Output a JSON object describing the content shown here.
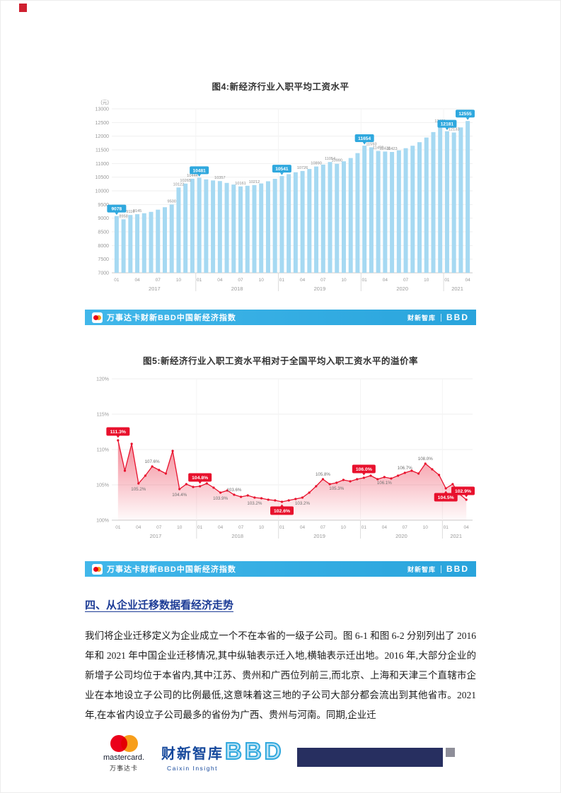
{
  "chart_data": [
    {
      "type": "bar",
      "title": "图4:新经济行业入职平均工资水平",
      "unit": "(元)",
      "ylim": [
        7000,
        13000
      ],
      "ytick_step": 500,
      "yticks": [
        "7000",
        "7500",
        "8000",
        "8500",
        "9000",
        "9500",
        "10000",
        "10500",
        "11000",
        "11500",
        "12000",
        "12500",
        "13000"
      ],
      "bar_color": "#a6d9f2",
      "callout_color": "#2fa8de",
      "years": [
        {
          "label": "2017",
          "months": 12,
          "ticks": [
            "01",
            "04",
            "07",
            "10"
          ]
        },
        {
          "label": "2018",
          "months": 12,
          "ticks": [
            "01",
            "04",
            "07",
            "10"
          ]
        },
        {
          "label": "2019",
          "months": 12,
          "ticks": [
            "01",
            "04",
            "07",
            "10"
          ]
        },
        {
          "label": "2020",
          "months": 12,
          "ticks": [
            "01",
            "04",
            "07",
            "10"
          ]
        },
        {
          "label": "2021",
          "months": 4,
          "ticks": [
            "01",
            "04"
          ]
        }
      ],
      "values": [
        9078,
        8958,
        9116,
        9145,
        9180,
        9230,
        9310,
        9400,
        9500,
        10122,
        10265,
        10444,
        10481,
        10420,
        10380,
        10357,
        10290,
        10230,
        10161,
        10185,
        10212,
        10270,
        10350,
        10440,
        10541,
        10610,
        10680,
        10726,
        10800,
        10890,
        10960,
        11054,
        10990,
        11080,
        11200,
        11380,
        11654,
        11593,
        11458,
        11438,
        11423,
        11480,
        11560,
        11650,
        11780,
        11950,
        12150,
        12431,
        12181,
        12133,
        12320,
        12555
      ],
      "point_labels": [
        {
          "i": 1,
          "text": "8958"
        },
        {
          "i": 2,
          "text": "9116"
        },
        {
          "i": 3,
          "text": "9145"
        },
        {
          "i": 8,
          "text": "9500"
        },
        {
          "i": 9,
          "text": "10122"
        },
        {
          "i": 10,
          "text": "10265"
        },
        {
          "i": 11,
          "text": "10444"
        },
        {
          "i": 15,
          "text": "10357"
        },
        {
          "i": 18,
          "text": "10161"
        },
        {
          "i": 20,
          "text": "10212"
        },
        {
          "i": 27,
          "text": "10726"
        },
        {
          "i": 29,
          "text": "10890"
        },
        {
          "i": 31,
          "text": "11054"
        },
        {
          "i": 32,
          "text": "10990"
        },
        {
          "i": 37,
          "text": "11593"
        },
        {
          "i": 38,
          "text": "11458"
        },
        {
          "i": 39,
          "text": "11438"
        },
        {
          "i": 40,
          "text": "11423"
        },
        {
          "i": 47,
          "text": "12431"
        },
        {
          "i": 49,
          "text": "12133"
        }
      ],
      "callouts": [
        {
          "i": 0,
          "text": "9078"
        },
        {
          "i": 12,
          "text": "10481"
        },
        {
          "i": 24,
          "text": "10541"
        },
        {
          "i": 36,
          "text": "11654"
        },
        {
          "i": 48,
          "text": "12181"
        },
        {
          "i": 51,
          "text": "12555"
        }
      ]
    },
    {
      "type": "area-line",
      "title": "图5:新经济行业入职工资水平相对于全国平均入职工资水平的溢价率",
      "ylim": [
        100,
        120
      ],
      "ytick_step": 5,
      "yticks": [
        "100%",
        "105%",
        "110%",
        "115%",
        "120%"
      ],
      "line_color": "#e8112d",
      "years": [
        {
          "label": "2017",
          "months": 12,
          "ticks": [
            "01",
            "04",
            "07",
            "10"
          ]
        },
        {
          "label": "2018",
          "months": 12,
          "ticks": [
            "01",
            "04",
            "07",
            "10"
          ]
        },
        {
          "label": "2019",
          "months": 12,
          "ticks": [
            "01",
            "04",
            "07",
            "10"
          ]
        },
        {
          "label": "2020",
          "months": 12,
          "ticks": [
            "01",
            "04",
            "07",
            "10"
          ]
        },
        {
          "label": "2021",
          "months": 4,
          "ticks": [
            "01",
            "04"
          ]
        }
      ],
      "values": [
        111.3,
        107.0,
        110.8,
        105.2,
        106.3,
        107.6,
        107.1,
        106.6,
        109.8,
        104.4,
        105.1,
        104.7,
        104.8,
        105.2,
        104.6,
        103.9,
        104.2,
        103.6,
        103.3,
        103.5,
        103.2,
        103.1,
        102.9,
        102.8,
        102.6,
        102.8,
        103.0,
        103.2,
        103.9,
        104.8,
        105.8,
        105.1,
        105.3,
        105.7,
        105.5,
        105.8,
        106.0,
        106.3,
        105.8,
        106.1,
        105.9,
        106.3,
        106.7,
        107.0,
        106.6,
        108.0,
        107.2,
        106.4,
        104.5,
        105.1,
        103.7,
        102.9
      ],
      "point_labels": [
        {
          "i": 3,
          "text": "105.2%",
          "pos": "below"
        },
        {
          "i": 5,
          "text": "107.6%",
          "pos": "above"
        },
        {
          "i": 9,
          "text": "104.4%",
          "pos": "below"
        },
        {
          "i": 15,
          "text": "103.9%",
          "pos": "below"
        },
        {
          "i": 17,
          "text": "103.6%",
          "pos": "above"
        },
        {
          "i": 20,
          "text": "103.2%",
          "pos": "below"
        },
        {
          "i": 27,
          "text": "103.2%",
          "pos": "below"
        },
        {
          "i": 30,
          "text": "105.8%",
          "pos": "above"
        },
        {
          "i": 32,
          "text": "105.3%",
          "pos": "below"
        },
        {
          "i": 39,
          "text": "106.1%",
          "pos": "below"
        },
        {
          "i": 42,
          "text": "106.7%",
          "pos": "above"
        },
        {
          "i": 45,
          "text": "108.0%",
          "pos": "above"
        }
      ],
      "callouts": [
        {
          "i": 0,
          "text": "111.3%",
          "dir": "up"
        },
        {
          "i": 12,
          "text": "104.8%",
          "dir": "up"
        },
        {
          "i": 24,
          "text": "102.6%",
          "dir": "down"
        },
        {
          "i": 36,
          "text": "106.0%",
          "dir": "up"
        },
        {
          "i": 48,
          "text": "104.5%",
          "dir": "down"
        },
        {
          "i": 51,
          "text": "102.9%",
          "dir": "up"
        }
      ]
    }
  ],
  "chart_footer": {
    "text": "万事达卡财新BBD中国新经济指数",
    "caixin": "财新智库",
    "bbd": "BBD"
  },
  "section": {
    "heading": "四、从企业迁移数据看经济走势",
    "paragraph": "我们将企业迁移定义为企业成立一个不在本省的一级子公司。图 6-1 和图 6-2 分别列出了 2016 年和 2021 年中国企业迁移情况,其中纵轴表示迁入地,横轴表示迁出地。2016 年,大部分企业的新增子公司均位于本省内,其中江苏、贵州和广西位列前三,而北京、上海和天津三个直辖市企业在本地设立子公司的比例最低,这意味着这三地的子公司大部分都会流出到其他省市。2021 年,在本省内设立子公司最多的省份为广西、贵州与河南。同期,企业迁"
  },
  "footer_logos": {
    "mastercard_word": "mastercard.",
    "mastercard_cn": "万事达卡",
    "caixin": "财新智库",
    "caixin_en": "Caixin Insight",
    "bbd": "BBD"
  }
}
